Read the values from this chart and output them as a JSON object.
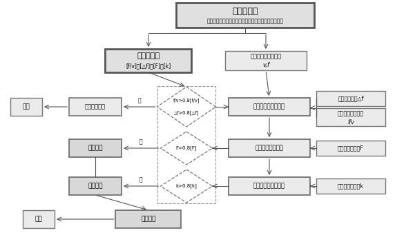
{
  "bg_color": "#ffffff",
  "sensor_text1": "传感器安装",
  "sensor_text2": "振动加速度、里程计、数据采集单元、显示与分析模块",
  "stddb_text1": "标准数据库",
  "stddb_text2": "[f/v]、[△f]、[F]、[k]",
  "datacol_text1": "列车运行时数据采集",
  "datacol_text2": "v,f",
  "d1_text1": "f/v>0.8[f/v]",
  "d1_text2": "△f>0.8[△f]",
  "d2_text": "F>0.8[F]",
  "d3_text": "k>0.8[k]",
  "jietou_eval": "每接头不平顺性评价",
  "meipj_eval": "每段不平顺性评价",
  "meikm_eval": "每公里不平顺性评价",
  "jietou_val1": "每接头倾斜值△f",
  "jietou_val2_l1": "每接头振幅速度比",
  "jietou_val2_l2": "f/v",
  "meiduan_val": "每段纵向倾斜度F",
  "meikm_val": "每公里不平顺值k",
  "chezai": "车载终端提醒",
  "jiansu": "降速",
  "houtai1": "后台提醒",
  "houtai2": "后台提醒",
  "report": "生成报表",
  "jianxiu": "检修",
  "shi": "是"
}
